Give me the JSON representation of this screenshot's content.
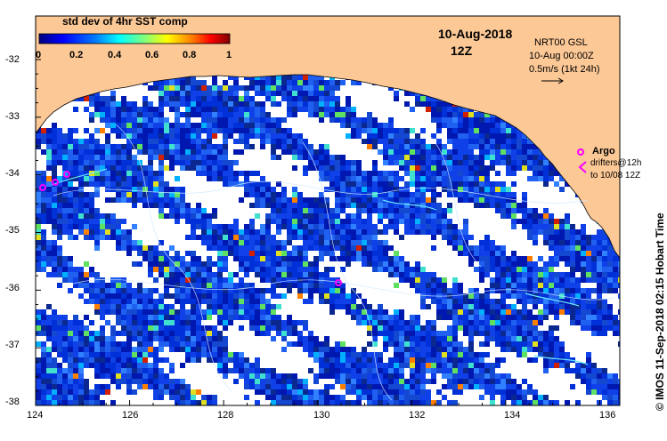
{
  "map": {
    "colorbar_title": "std dev of 4hr SST comp",
    "colorbar_ticks": [
      "0",
      "0.2",
      "0.4",
      "0.6",
      "0.8",
      "1"
    ],
    "colorbar_colors": [
      "#00007f",
      "#0000ff",
      "#007fff",
      "#00ffff",
      "#7fff7f",
      "#ffff00",
      "#ff7f00",
      "#ff0000",
      "#7f0000"
    ],
    "date": "10-Aug-2018",
    "time": "12Z",
    "legend": {
      "model": "NRT00 GSL",
      "model_time": "10-Aug 00:00Z",
      "scale": "0.5m/s (1kt 24h)"
    },
    "argo_label": "Argo",
    "drifter_label": "drifters@12h",
    "drifter_range": "to 10/08 12Z",
    "credit": "© IMOS 11-Sep-2018 02:15 Hobart Time",
    "longitude_ticks": [
      "124",
      "126",
      "128",
      "130",
      "132",
      "134",
      "136"
    ],
    "latitude_ticks": [
      "-32",
      "-33",
      "-34",
      "-35",
      "-36",
      "-37",
      "-38"
    ],
    "colors": {
      "land": "#fcc896",
      "ocean_blank": "#ffffff",
      "argo_marker": "#ff00ff",
      "primary_data": "#1040d0"
    }
  }
}
